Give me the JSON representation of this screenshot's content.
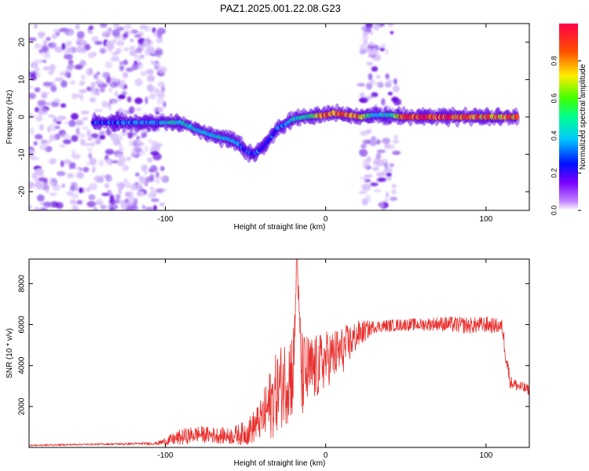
{
  "page": {
    "title": "PAZ1.2025.001.22.08.G23"
  },
  "colors": {
    "series": "#e8302e",
    "ridge": [
      "#5a00e0",
      "#00b4ff",
      "#00e890",
      "#ffd400",
      "#ff2020"
    ],
    "noise": "#9b5ae6"
  },
  "chart_data": [
    {
      "type": "heatmap",
      "xlabel": "Height of straight line (km)",
      "ylabel": "Frequency (Hz)",
      "xlim": [
        -185,
        127
      ],
      "ylim": [
        -25,
        25
      ],
      "xticks": [
        -100,
        0,
        100
      ],
      "yticks": [
        -20,
        -10,
        0,
        10,
        20
      ],
      "grid": false,
      "colorbar": {
        "label": "Normalized spectral amplitude",
        "range": [
          0,
          1
        ],
        "ticks": [
          "0.0",
          "0.2",
          "0.4",
          "0.6",
          "0.8"
        ],
        "colormap": "rainbow (violet to red)"
      },
      "ridge": [
        {
          "x": -145,
          "y": -1.5,
          "a": 0.35
        },
        {
          "x": -100,
          "y": -1.5,
          "a": 0.45
        },
        {
          "x": -90,
          "y": -1.5,
          "a": 0.55
        },
        {
          "x": -80,
          "y": -3.5,
          "a": 0.45
        },
        {
          "x": -70,
          "y": -5,
          "a": 0.45
        },
        {
          "x": -60,
          "y": -6,
          "a": 0.45
        },
        {
          "x": -55,
          "y": -7,
          "a": 0.45
        },
        {
          "x": -50,
          "y": -9,
          "a": 0.35
        },
        {
          "x": -45,
          "y": -10,
          "a": 0.4
        },
        {
          "x": -40,
          "y": -8.5,
          "a": 0.35
        },
        {
          "x": -35,
          "y": -6,
          "a": 0.35
        },
        {
          "x": -30,
          "y": -3,
          "a": 0.4
        },
        {
          "x": -25,
          "y": -2,
          "a": 0.4
        },
        {
          "x": -20,
          "y": -0.5,
          "a": 0.5
        },
        {
          "x": -10,
          "y": 0.2,
          "a": 0.6
        },
        {
          "x": 0,
          "y": 0.5,
          "a": 0.9
        },
        {
          "x": 5,
          "y": 1,
          "a": 0.9
        },
        {
          "x": 15,
          "y": 0.5,
          "a": 0.85
        },
        {
          "x": 22,
          "y": 0,
          "a": 0.8
        },
        {
          "x": 30,
          "y": 0.5,
          "a": 0.45
        },
        {
          "x": 40,
          "y": 0.5,
          "a": 0.5
        },
        {
          "x": 48,
          "y": 0,
          "a": 0.9
        },
        {
          "x": 60,
          "y": 0,
          "a": 0.95
        },
        {
          "x": 80,
          "y": 0,
          "a": 0.9
        },
        {
          "x": 100,
          "y": 0,
          "a": 0.85
        },
        {
          "x": 120,
          "y": 0,
          "a": 0.85
        }
      ],
      "noise_regions": [
        {
          "x": [
            -185,
            -100
          ],
          "y": [
            -25,
            25
          ],
          "a": 0.2
        },
        {
          "x": [
            22,
            45
          ],
          "y": [
            -25,
            25
          ],
          "a": 0.15
        }
      ]
    },
    {
      "type": "line",
      "xlabel": "Height of straight line (km)",
      "ylabel": "SNR (10 * v/v)",
      "xlim": [
        -185,
        127
      ],
      "ylim": [
        0,
        9200
      ],
      "xticks": [
        -100,
        0,
        100
      ],
      "yticks": [
        2000,
        4000,
        6000,
        8000
      ],
      "grid": false,
      "series": [
        {
          "x": [
            -185,
            -150,
            -120,
            -105,
            -100,
            -90,
            -80,
            -70,
            -60,
            -50,
            -45,
            -40,
            -35,
            -30,
            -25,
            -20,
            -18,
            -15,
            -10,
            -5,
            0,
            10,
            20,
            30,
            40,
            50,
            60,
            70,
            80,
            90,
            100,
            110,
            112,
            115,
            120,
            127
          ],
          "values": [
            100,
            150,
            180,
            200,
            300,
            500,
            650,
            600,
            550,
            700,
            1000,
            1400,
            2000,
            2800,
            3300,
            3800,
            9200,
            3500,
            3700,
            3900,
            4300,
            4700,
            5500,
            5900,
            5950,
            6000,
            6000,
            6050,
            6000,
            5950,
            6000,
            5900,
            4800,
            3200,
            3000,
            2800
          ],
          "spread": [
            40,
            40,
            60,
            80,
            200,
            400,
            400,
            400,
            400,
            600,
            800,
            1000,
            1800,
            2000,
            2200,
            2400,
            0,
            2200,
            1800,
            1600,
            1400,
            1200,
            700,
            300,
            300,
            300,
            300,
            350,
            400,
            400,
            400,
            350,
            600,
            300,
            300,
            250
          ]
        }
      ]
    }
  ]
}
